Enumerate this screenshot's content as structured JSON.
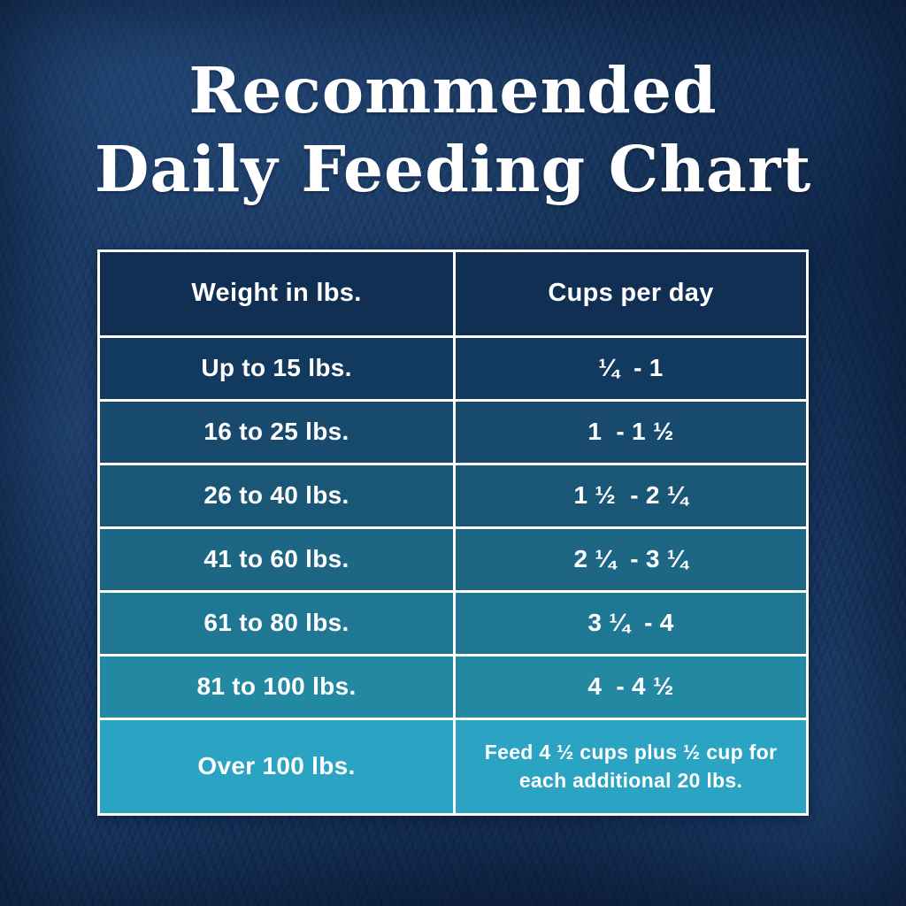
{
  "title": {
    "line1": "Recommended",
    "line2": "Daily Feeding Chart"
  },
  "table": {
    "headers": [
      "Weight in lbs.",
      "Cups per day"
    ],
    "rows": [
      {
        "weight": "Up to 15 lbs.",
        "cups": "¼  - 1",
        "bg": "#123a5e"
      },
      {
        "weight": "16 to 25 lbs.",
        "cups": "1  - 1 ½",
        "bg": "#174a6c"
      },
      {
        "weight": "26 to 40 lbs.",
        "cups": "1 ½  - 2 ¼",
        "bg": "#1a5777"
      },
      {
        "weight": "41 to 60 lbs.",
        "cups": "2 ¼  - 3 ¼",
        "bg": "#1d6785"
      },
      {
        "weight": "61 to 80 lbs.",
        "cups": "3 ¼  - 4",
        "bg": "#207793"
      },
      {
        "weight": "81 to 100 lbs.",
        "cups": "4  - 4 ½",
        "bg": "#2389a3"
      },
      {
        "weight": "Over 100 lbs.",
        "cups": "Feed 4 ½ cups plus ½ cup for each additional 20 lbs.",
        "bg": "#2ba3c2"
      }
    ]
  },
  "colors": {
    "header_bg": "#112e53",
    "table_border": "#ffffff",
    "text": "#ffffff",
    "background_base": "#17365f"
  },
  "chart_data": {
    "type": "table",
    "title": "Recommended Daily Feeding Chart",
    "columns": [
      "Weight in lbs.",
      "Cups per day"
    ],
    "rows": [
      [
        "Up to 15 lbs.",
        "¼ - 1"
      ],
      [
        "16 to 25 lbs.",
        "1 - 1 ½"
      ],
      [
        "26 to 40 lbs.",
        "1 ½ - 2 ¼"
      ],
      [
        "41 to 60 lbs.",
        "2 ¼ - 3 ¼"
      ],
      [
        "61 to 80 lbs.",
        "3 ¼ - 4"
      ],
      [
        "81 to 100 lbs.",
        "4 - 4 ½"
      ],
      [
        "Over 100 lbs.",
        "Feed 4 ½ cups plus ½ cup for each additional 20 lbs."
      ]
    ],
    "cups_per_day_numeric_ranges": [
      [
        0.25,
        1
      ],
      [
        1,
        1.5
      ],
      [
        1.5,
        2.25
      ],
      [
        2.25,
        3.25
      ],
      [
        3.25,
        4
      ],
      [
        4,
        4.5
      ]
    ],
    "over_100_lbs_rule": "4.5 cups plus 0.5 cup for each additional 20 lbs."
  }
}
